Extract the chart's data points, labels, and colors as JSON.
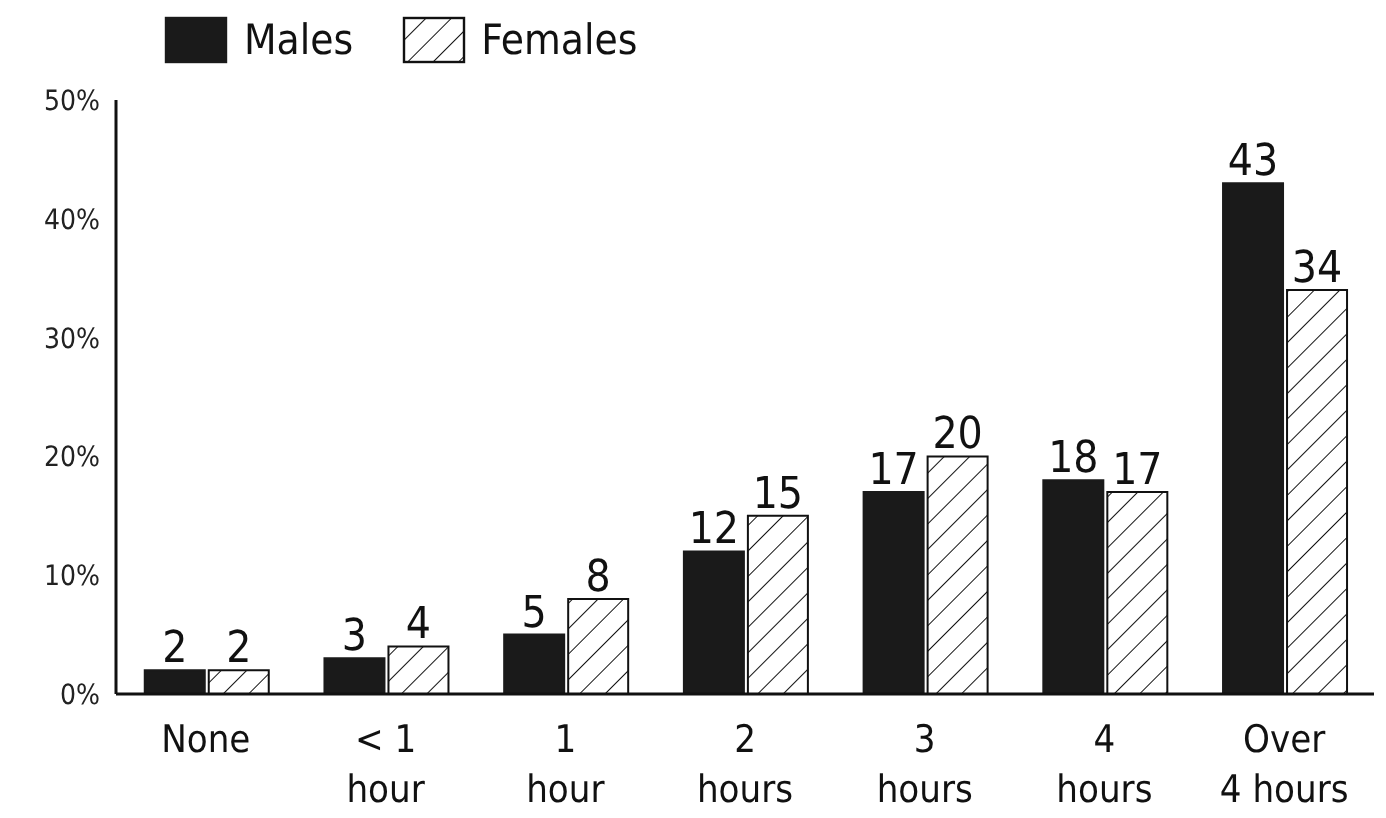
{
  "chart_data": {
    "type": "bar",
    "categories": [
      "None",
      "< 1\nhour",
      "1\nhour",
      "2\nhours",
      "3\nhours",
      "4\nhours",
      "Over\n4 hours"
    ],
    "series": [
      {
        "name": "Males",
        "color": "#1a1a1a",
        "values": [
          2,
          3,
          5,
          12,
          17,
          18,
          43
        ]
      },
      {
        "name": "Females",
        "color": "#111111",
        "values": [
          2,
          4,
          8,
          15,
          20,
          17,
          34
        ]
      }
    ],
    "ylim": [
      0,
      50
    ],
    "yticks": [
      {
        "value": 0,
        "label": "0%"
      },
      {
        "value": 10,
        "label": "10%"
      },
      {
        "value": 20,
        "label": "20%"
      },
      {
        "value": 30,
        "label": "30%"
      },
      {
        "value": 40,
        "label": "40%"
      },
      {
        "value": 50,
        "label": "50%"
      }
    ],
    "data_labels": true,
    "legend": "top left",
    "grid": false
  }
}
